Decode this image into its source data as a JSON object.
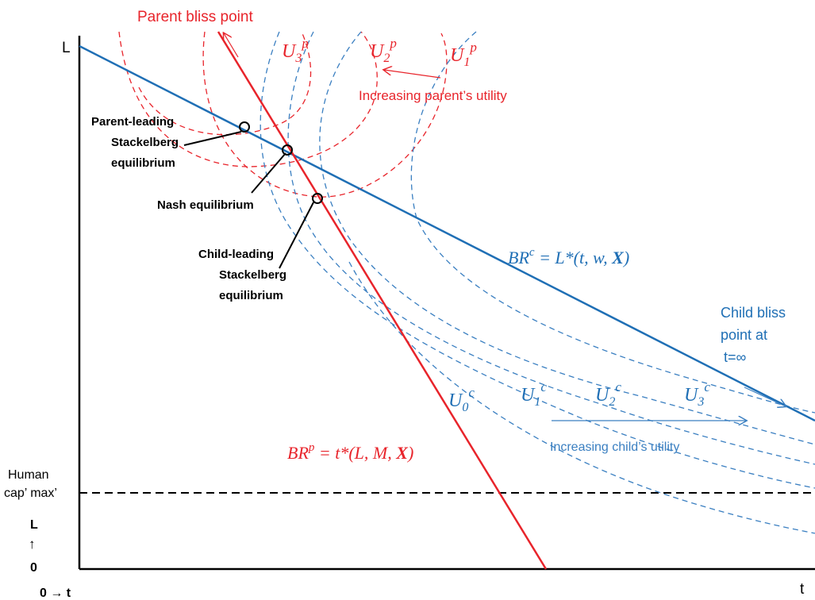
{
  "axes": {
    "y_top_label": "L",
    "x_right_label": "t",
    "origin_y_label_top": "L",
    "origin_y_label_arrow": "↑",
    "origin_y_label_zero": "0",
    "origin_x_label": "0 → t",
    "human_cap_label_line1": "Human",
    "human_cap_label_line2": "cap’ max’"
  },
  "labels": {
    "parent_bliss": "Parent bliss point",
    "increasing_parent": "Increasing parent’s utility",
    "parent_leading_1": "Parent-leading",
    "parent_leading_2": "Stackelberg",
    "parent_leading_3": "equilibrium",
    "nash": "Nash equilibrium",
    "child_leading_1": "Child-leading",
    "child_leading_2": "Stackelberg",
    "child_leading_3": "equilibrium",
    "child_bliss_1": "Child bliss",
    "child_bliss_2": "point at",
    "child_bliss_3": "t=∞",
    "increasing_child": "Increasing child’s utility"
  },
  "curves": {
    "parent": [
      {
        "base": "U",
        "sub": "3",
        "sup": "p"
      },
      {
        "base": "U",
        "sub": "2",
        "sup": "p"
      },
      {
        "base": "U",
        "sub": "1",
        "sup": "p"
      }
    ],
    "child": [
      {
        "base": "U",
        "sub": "0",
        "sup": "c"
      },
      {
        "base": "U",
        "sub": "1",
        "sup": "c"
      },
      {
        "base": "U",
        "sub": "2",
        "sup": "c"
      },
      {
        "base": "U",
        "sub": "3",
        "sup": "c"
      }
    ]
  },
  "best_response": {
    "child_prefix": "BR",
    "child_sup": "c",
    "child_rhs": " = L*(t, w, ",
    "child_bold": "X",
    "child_close": ")",
    "parent_prefix": "BR",
    "parent_sup": "p",
    "parent_rhs": " = t*(L, M, ",
    "parent_bold": "X",
    "parent_close": ")"
  },
  "colors": {
    "red": "#e8242b",
    "blue": "#1f6fb5",
    "dash_blue": "#3a7fc1",
    "black": "#000000"
  }
}
